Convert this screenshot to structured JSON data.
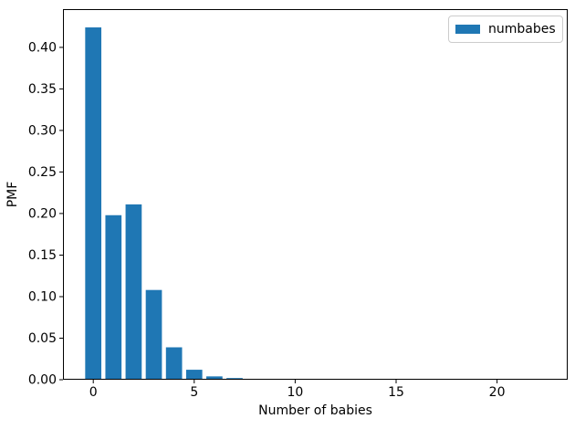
{
  "chart_data": {
    "type": "bar",
    "title": "",
    "xlabel": "Number of babies",
    "ylabel": "PMF",
    "legend": {
      "label": "numbabes",
      "position": "upper right"
    },
    "series": [
      {
        "name": "numbabes",
        "x": [
          0,
          1,
          2,
          3,
          4,
          5,
          6,
          7,
          8,
          9,
          10
        ],
        "values": [
          0.424,
          0.198,
          0.211,
          0.108,
          0.039,
          0.012,
          0.004,
          0.002,
          0.001,
          0.001,
          0.001
        ]
      }
    ],
    "bar_color": "#1f77b4",
    "bar_width": 0.8,
    "xlim": [
      -1.5,
      23.5
    ],
    "ylim": [
      0,
      0.446
    ],
    "xticks": [
      "0",
      "5",
      "10",
      "15",
      "20"
    ],
    "yticks": [
      "0.00",
      "0.05",
      "0.10",
      "0.15",
      "0.20",
      "0.25",
      "0.30",
      "0.35",
      "0.40"
    ],
    "grid": false,
    "colors": {
      "spine": "#000000",
      "text": "#000000",
      "legend_border": "#cccccc",
      "background": "#ffffff"
    }
  }
}
